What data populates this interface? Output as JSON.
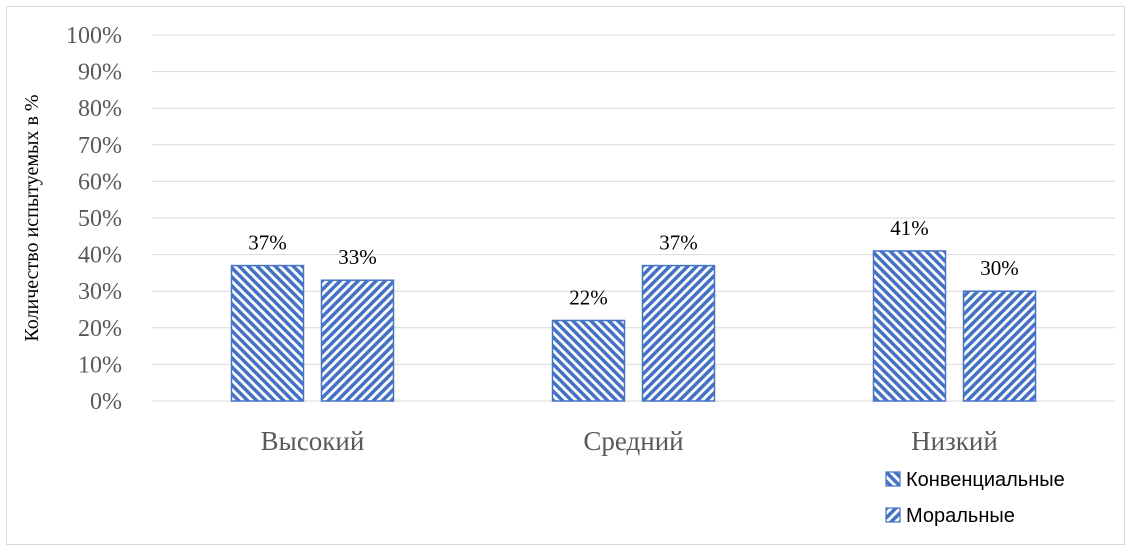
{
  "chart_data": {
    "type": "bar",
    "categories": [
      "Высокий",
      "Средний",
      "Низкий"
    ],
    "series": [
      {
        "name": "Конвенциальные",
        "values": [
          37,
          22,
          41
        ],
        "labels": [
          "37%",
          "22%",
          "41%"
        ]
      },
      {
        "name": "Моральные",
        "values": [
          33,
          37,
          30
        ],
        "labels": [
          "33%",
          "37%",
          "30%"
        ]
      }
    ],
    "title": "",
    "xlabel": "",
    "ylabel": "Количество испытуемых в %",
    "ylim": [
      0,
      100
    ],
    "yticks": [
      "0%",
      "10%",
      "20%",
      "30%",
      "40%",
      "50%",
      "60%",
      "70%",
      "80%",
      "90%",
      "100%"
    ],
    "grid": true,
    "legend_position": "bottom-right",
    "colors": {
      "bar_stroke": "#4472C4",
      "bar_hatch": "#4472C4",
      "grid": "#D9D9D9",
      "axis": "#D9D9D9",
      "border": "#D9D9D9"
    }
  }
}
